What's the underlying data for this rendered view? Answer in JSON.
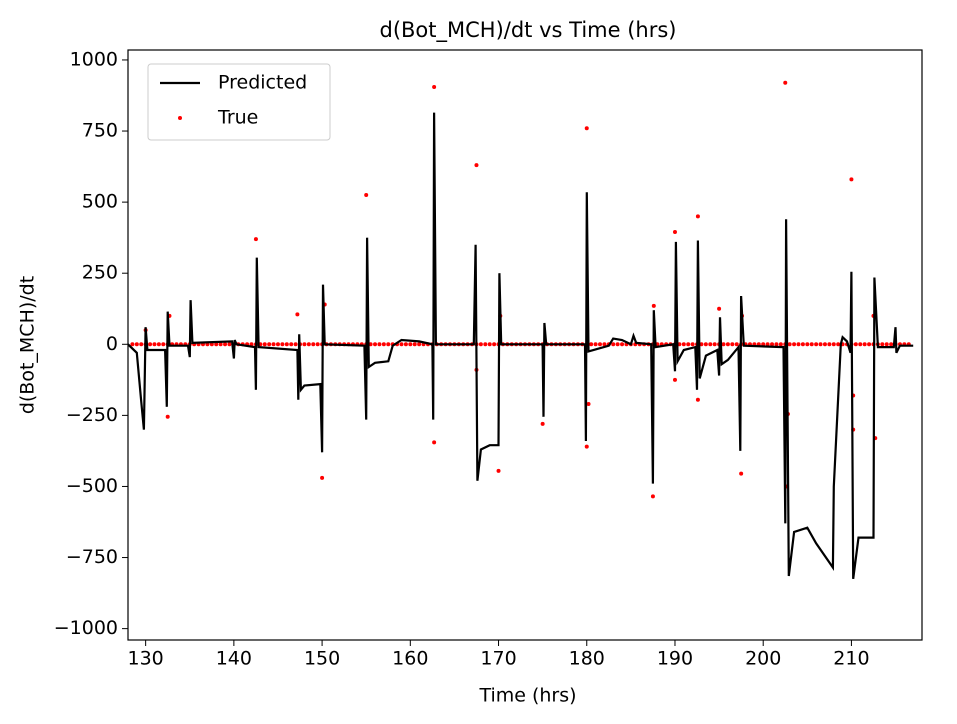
{
  "chart_data": {
    "type": "line",
    "title": "d(Bot_MCH)/dt vs Time (hrs)",
    "x_label": "Time (hrs)",
    "y_label": "d(Bot_MCH)/dt",
    "xlim": [
      128,
      218
    ],
    "xticks": [
      130,
      140,
      150,
      160,
      170,
      180,
      190,
      200,
      210
    ],
    "ylim": [
      -1040,
      1035
    ],
    "yticks": [
      {
        "value": -1000,
        "label": "−1000"
      },
      {
        "value": -750,
        "label": "−750"
      },
      {
        "value": -500,
        "label": "−500"
      },
      {
        "value": -250,
        "label": "−250"
      },
      0,
      250,
      500,
      750,
      1000
    ],
    "legend": "upper left",
    "series": [
      {
        "name": "Predicted",
        "type": "line",
        "color": "#000000",
        "x": [
          128,
          129,
          129.5,
          129.8,
          130,
          130.2,
          132.2,
          132.4,
          132.5,
          132.7,
          134.8,
          135,
          135.1,
          135.3,
          139.8,
          140,
          140.1,
          140.3,
          142.4,
          142.5,
          142.6,
          142.8,
          147.2,
          147.3,
          147.4,
          147.6,
          148,
          149.8,
          150,
          150.1,
          150.3,
          154.8,
          155,
          155.1,
          155.3,
          156,
          157.5,
          158,
          159,
          161,
          162.5,
          162.6,
          162.7,
          162.9,
          167.2,
          167.4,
          167.6,
          168,
          169,
          170,
          170.1,
          170.3,
          175,
          175.1,
          175.2,
          175.4,
          179.8,
          179.9,
          180,
          180.2,
          182.5,
          183,
          184,
          185,
          185.3,
          185.6,
          187.3,
          187.5,
          187.6,
          187.8,
          189.8,
          190,
          190.1,
          190.3,
          191,
          192.3,
          192.5,
          192.6,
          192.8,
          193.5,
          194.8,
          195,
          195.1,
          195.3,
          196,
          197.2,
          197.4,
          197.5,
          197.8,
          202.3,
          202.5,
          202.6,
          202.9,
          203.5,
          205,
          206,
          207.9,
          208,
          208.8,
          209,
          209.5,
          209.9,
          210,
          210.2,
          210.8,
          212.5,
          212.6,
          213,
          214.8,
          215,
          215.1,
          215.5,
          217
        ],
        "y": [
          0,
          -30,
          -200,
          -300,
          60,
          -20,
          -20,
          -220,
          115,
          -5,
          -5,
          -45,
          155,
          5,
          10,
          -50,
          15,
          0,
          -10,
          -160,
          305,
          -10,
          -20,
          -195,
          35,
          -160,
          -145,
          -140,
          -380,
          210,
          0,
          -5,
          -265,
          375,
          -80,
          -65,
          -60,
          -5,
          15,
          10,
          0,
          -265,
          815,
          0,
          0,
          350,
          -480,
          -370,
          -355,
          -355,
          250,
          0,
          0,
          -255,
          75,
          0,
          0,
          -340,
          535,
          -25,
          -5,
          20,
          15,
          0,
          30,
          5,
          0,
          -490,
          120,
          -10,
          0,
          -95,
          360,
          -60,
          -20,
          -10,
          -160,
          365,
          -120,
          -40,
          -20,
          -110,
          95,
          -70,
          -55,
          -10,
          -375,
          170,
          -5,
          -10,
          -630,
          440,
          -815,
          -660,
          -645,
          -700,
          -785,
          -500,
          0,
          25,
          10,
          -30,
          255,
          -825,
          -680,
          -680,
          235,
          -10,
          -10,
          60,
          -30,
          -5,
          -5
        ]
      },
      {
        "name": "True",
        "type": "points",
        "color": "#ff0000",
        "x": [
          128.5,
          129,
          129.5,
          130,
          130.5,
          131,
          131.5,
          132,
          132.5,
          133,
          133.5,
          134,
          134.5,
          135,
          135.5,
          136,
          136.5,
          137,
          137.5,
          138,
          138.5,
          139,
          139.5,
          140,
          140.5,
          141,
          141.5,
          142,
          142.5,
          143,
          143.5,
          144,
          144.5,
          145,
          145.5,
          146,
          146.5,
          147,
          147.5,
          148,
          148.5,
          149,
          149.5,
          150,
          150.5,
          151,
          151.5,
          152,
          152.5,
          153,
          153.5,
          154,
          154.5,
          155,
          155.5,
          156,
          156.5,
          157,
          157.5,
          158,
          158.5,
          159,
          159.5,
          160,
          160.5,
          161,
          161.5,
          162,
          162.5,
          163,
          163.5,
          164,
          164.5,
          165,
          165.5,
          166,
          166.5,
          167,
          167.5,
          168,
          168.5,
          169,
          169.5,
          170,
          170.5,
          171,
          171.5,
          172,
          172.5,
          173,
          173.5,
          174,
          174.5,
          175,
          175.5,
          176,
          176.5,
          177,
          177.5,
          178,
          178.5,
          179,
          179.5,
          180,
          180.5,
          181,
          181.5,
          182,
          182.5,
          183,
          183.5,
          184,
          184.5,
          185,
          185.5,
          186,
          186.5,
          187,
          187.5,
          188,
          188.5,
          189,
          189.5,
          190,
          190.5,
          191,
          191.5,
          192,
          192.5,
          193,
          193.5,
          194,
          194.5,
          195,
          195.5,
          196,
          196.5,
          197,
          197.5,
          198,
          198.5,
          199,
          199.5,
          200,
          200.5,
          201,
          201.5,
          202,
          202.5,
          203,
          203.5,
          204,
          204.5,
          205,
          205.5,
          206,
          206.5,
          207,
          207.5,
          208,
          208.5,
          209,
          209.5,
          210,
          210.5,
          211,
          211.5,
          212,
          212.5,
          213,
          213.5,
          214,
          214.5,
          215,
          215.5,
          216,
          216.5,
          130,
          132.5,
          132.7,
          142.5,
          147.2,
          150,
          150.3,
          155,
          162.7,
          162.7,
          167.5,
          167.5,
          170,
          170.2,
          175,
          180,
          180,
          180.2,
          187.5,
          187.6,
          190,
          190,
          192.6,
          192.6,
          195,
          197.5,
          197.6,
          202.5,
          202.7,
          202.8,
          210,
          210.2,
          210.2,
          212.7,
          212.5
        ],
        "y": [
          0,
          0,
          0,
          0,
          0,
          0,
          0,
          0,
          0,
          0,
          0,
          0,
          0,
          0,
          0,
          0,
          0,
          0,
          0,
          0,
          0,
          0,
          0,
          0,
          0,
          0,
          0,
          0,
          0,
          0,
          0,
          0,
          0,
          0,
          0,
          0,
          0,
          0,
          0,
          0,
          0,
          0,
          0,
          0,
          0,
          0,
          0,
          0,
          0,
          0,
          0,
          0,
          0,
          0,
          0,
          0,
          0,
          0,
          0,
          0,
          0,
          0,
          0,
          0,
          0,
          0,
          0,
          0,
          0,
          0,
          0,
          0,
          0,
          0,
          0,
          0,
          0,
          0,
          0,
          0,
          0,
          0,
          0,
          0,
          0,
          0,
          0,
          0,
          0,
          0,
          0,
          0,
          0,
          0,
          0,
          0,
          0,
          0,
          0,
          0,
          0,
          0,
          0,
          0,
          0,
          0,
          0,
          0,
          0,
          0,
          0,
          0,
          0,
          0,
          0,
          0,
          0,
          0,
          0,
          0,
          0,
          0,
          0,
          0,
          0,
          0,
          0,
          0,
          0,
          0,
          0,
          0,
          0,
          0,
          0,
          0,
          0,
          0,
          0,
          0,
          0,
          0,
          0,
          0,
          0,
          0,
          0,
          0,
          0,
          0,
          0,
          0,
          0,
          0,
          0,
          0,
          0,
          0,
          0,
          0,
          0,
          0,
          0,
          0,
          0,
          0,
          0,
          0,
          0,
          0,
          0,
          0,
          0,
          0,
          0,
          0,
          0,
          50,
          -255,
          100,
          370,
          105,
          -470,
          140,
          525,
          905,
          -345,
          630,
          -90,
          -445,
          100,
          -280,
          760,
          -360,
          -210,
          -535,
          135,
          395,
          -125,
          450,
          -195,
          125,
          -455,
          100,
          920,
          -500,
          -245,
          580,
          -300,
          -180,
          -330,
          100
        ]
      }
    ]
  }
}
